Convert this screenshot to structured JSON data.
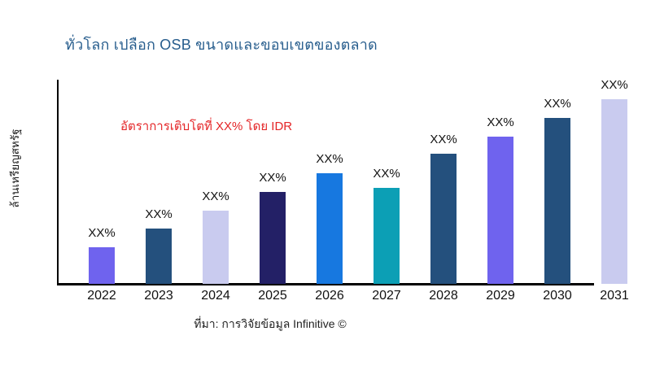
{
  "page": {
    "background": "#ffffff"
  },
  "header": {
    "title": "ทั่วโลก เปลือก OSB ขนาดและขอบเขตของตลาด",
    "title_color": "#275d8d"
  },
  "chart_data": {
    "type": "bar",
    "title": "ทั่วโลก เปลือก OSB ขนาดและขอบเขตของตลาด",
    "xlabel": "",
    "ylabel": "ล้านเหรียญสหรัฐ",
    "categories": [
      "2022",
      "2023",
      "2024",
      "2025",
      "2026",
      "2027",
      "2028",
      "2029",
      "2030",
      "2031"
    ],
    "bar_value_labels": [
      "XX%",
      "XX%",
      "XX%",
      "XX%",
      "XX%",
      "XX%",
      "XX%",
      "XX%",
      "XX%",
      "XX%"
    ],
    "values_relative_height": [
      45,
      68,
      90,
      113,
      136,
      118,
      160,
      181,
      204,
      227
    ],
    "bar_colors": [
      "#6f63ee",
      "#24507d",
      "#c9cbef",
      "#232066",
      "#1778e0",
      "#0c9fb5",
      "#24507d",
      "#6f63ee",
      "#24507d",
      "#c9cbef"
    ],
    "annotation": {
      "text": "อัตราการเติบโตที่ XX% โดย IDR",
      "color": "#e42527"
    },
    "source": "ที่มา: การวิจัยข้อมูล Infinitive ©",
    "grid": false,
    "legend": false,
    "axis_color": "#000000",
    "value_axis_numeric_ticks": []
  }
}
